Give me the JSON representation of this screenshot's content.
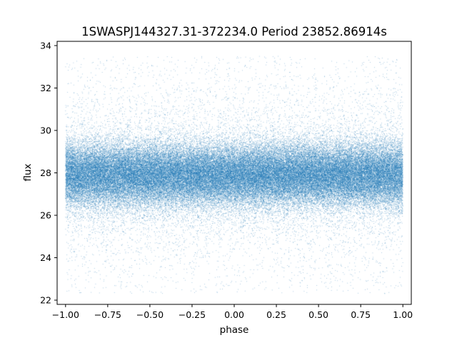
{
  "chart_data": {
    "type": "scatter",
    "title": "1SWASPJ144327.31-372234.0 Period 23852.86914s",
    "xlabel": "phase",
    "ylabel": "flux",
    "xlim": [
      -1.05,
      1.05
    ],
    "ylim": [
      21.8,
      34.2
    ],
    "xticks": [
      -1.0,
      -0.75,
      -0.5,
      -0.25,
      0.0,
      0.25,
      0.5,
      0.75,
      1.0
    ],
    "xtick_labels": [
      "−1.00",
      "−0.75",
      "−0.50",
      "−0.25",
      "0.00",
      "0.25",
      "0.50",
      "0.75",
      "1.00"
    ],
    "yticks": [
      22,
      24,
      26,
      28,
      30,
      32,
      34
    ],
    "ytick_labels": [
      "22",
      "24",
      "26",
      "28",
      "30",
      "32",
      "34"
    ],
    "grid": false,
    "point_color": "#1f77b4",
    "series": [
      {
        "phase_range": [
          -1.0,
          1.0
        ],
        "flux_range": [
          22.3,
          33.5
        ],
        "flux_center": 27.9,
        "dense_band": [
          26.5,
          29.5
        ]
      }
    ]
  }
}
